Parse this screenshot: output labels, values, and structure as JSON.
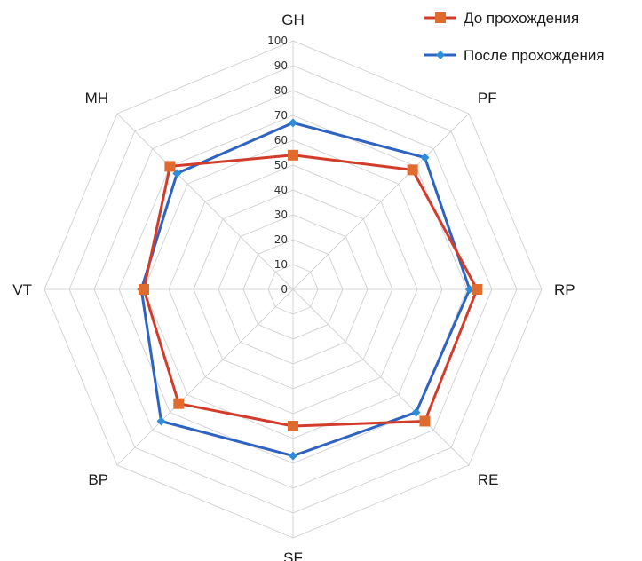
{
  "chart_data": {
    "type": "radar",
    "categories": [
      "GH",
      "PF",
      "RP",
      "RE",
      "SF",
      "BP",
      "VT",
      "MH"
    ],
    "series": [
      {
        "name": "До прохождения",
        "values": [
          54,
          68,
          74,
          75,
          55,
          65,
          60,
          70
        ],
        "color": "#d23c2a",
        "marker": "square",
        "marker_color": "#e06b2e"
      },
      {
        "name": "После прохождения",
        "values": [
          67,
          75,
          71,
          70,
          67,
          75,
          61,
          66
        ],
        "color": "#2f63c2",
        "marker": "diamond",
        "marker_color": "#2e8fd8"
      }
    ],
    "rlim": [
      0,
      100
    ],
    "ticks": [
      "0",
      "10",
      "20",
      "30",
      "40",
      "50",
      "60",
      "70",
      "80",
      "90",
      "100"
    ],
    "grid": true,
    "legend": "top-right"
  }
}
